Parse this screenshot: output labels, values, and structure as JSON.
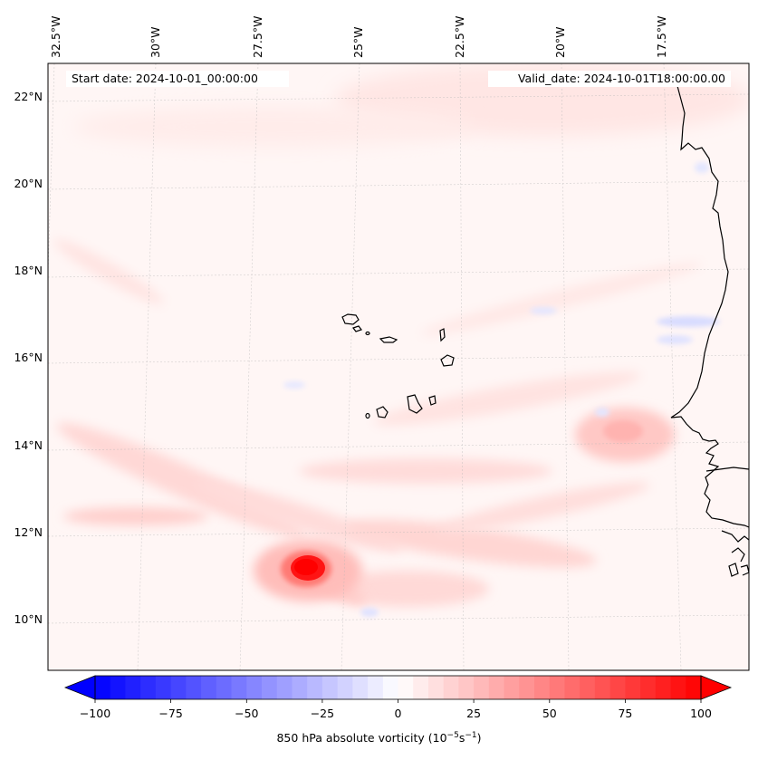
{
  "map": {
    "lon_labels": [
      "32.5°W",
      "30°W",
      "27.5°W",
      "25°W",
      "22.5°W",
      "20°W",
      "17.5°W"
    ],
    "lat_labels": [
      "22°N",
      "20°N",
      "18°N",
      "16°N",
      "14°N",
      "12°N",
      "10°N"
    ],
    "start_date": "Start date: 2024-10-01_00:00:00",
    "valid_date": "Valid_date: 2024-10-01T18:00:00.00"
  },
  "colorbar": {
    "ticks": [
      "−100",
      "−75",
      "−50",
      "−25",
      "0",
      "25",
      "50",
      "75",
      "100"
    ],
    "label": "850 hPa absolute vorticity (10",
    "label_exp1": "−5",
    "label_mid": "s",
    "label_exp2": "−1",
    "label_end": ")",
    "min": -100,
    "max": 100,
    "colors": {
      "negative_max": "#0000ff",
      "zero": "#ffffff",
      "positive_max": "#ff0000"
    }
  }
}
